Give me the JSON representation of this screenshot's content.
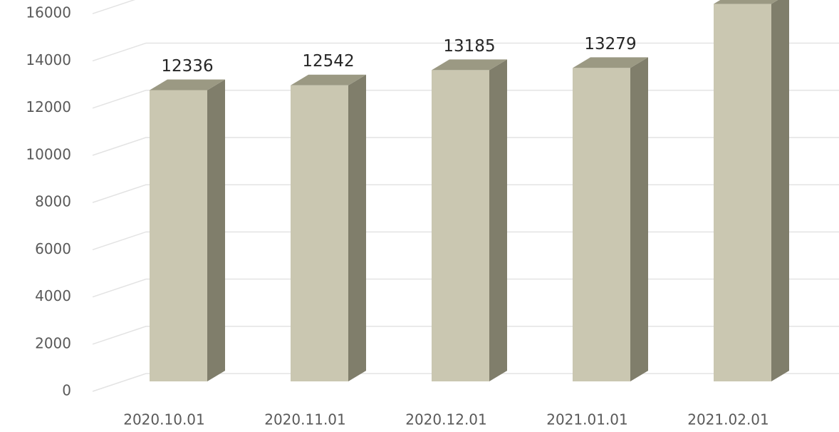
{
  "chart_data": {
    "type": "bar3d",
    "categories": [
      "2020.10.01",
      "2020.11.01",
      "2020.12.01",
      "2021.01.01",
      "2021.02.01"
    ],
    "values": [
      12336,
      12542,
      13185,
      13279,
      15990
    ],
    "colors": {
      "front": "#cac7b1",
      "side": "#807e6b",
      "top": "#9b9983"
    },
    "ylim": [
      0,
      18000
    ],
    "yticks": [
      0,
      2000,
      4000,
      6000,
      8000,
      10000,
      12000,
      14000,
      16000
    ],
    "grid": true
  }
}
